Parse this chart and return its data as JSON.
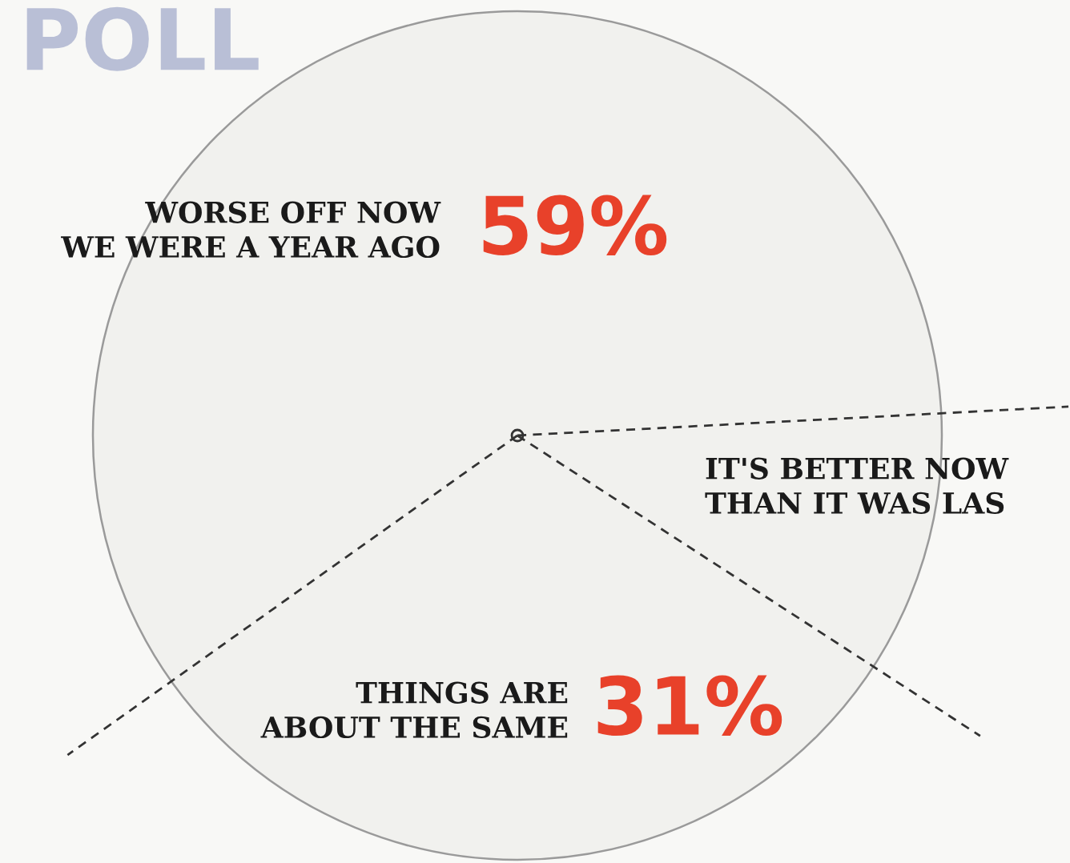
{
  "chart_data": {
    "type": "pie",
    "categories": [
      "WORSE OFF NOW\nWE WERE A YEAR AGO",
      "THINGS ARE\nABOUT THE SAME",
      "IT'S BETTER NOW\nTHAN IT WAS LAS"
    ],
    "values": [
      59,
      31,
      10
    ],
    "colors": [
      "#f1f1ee",
      "#f1f1ee",
      "#f1f1ee"
    ],
    "value_labels": [
      "59%",
      "31%",
      null
    ],
    "annotations": [
      "POLL"
    ]
  }
}
